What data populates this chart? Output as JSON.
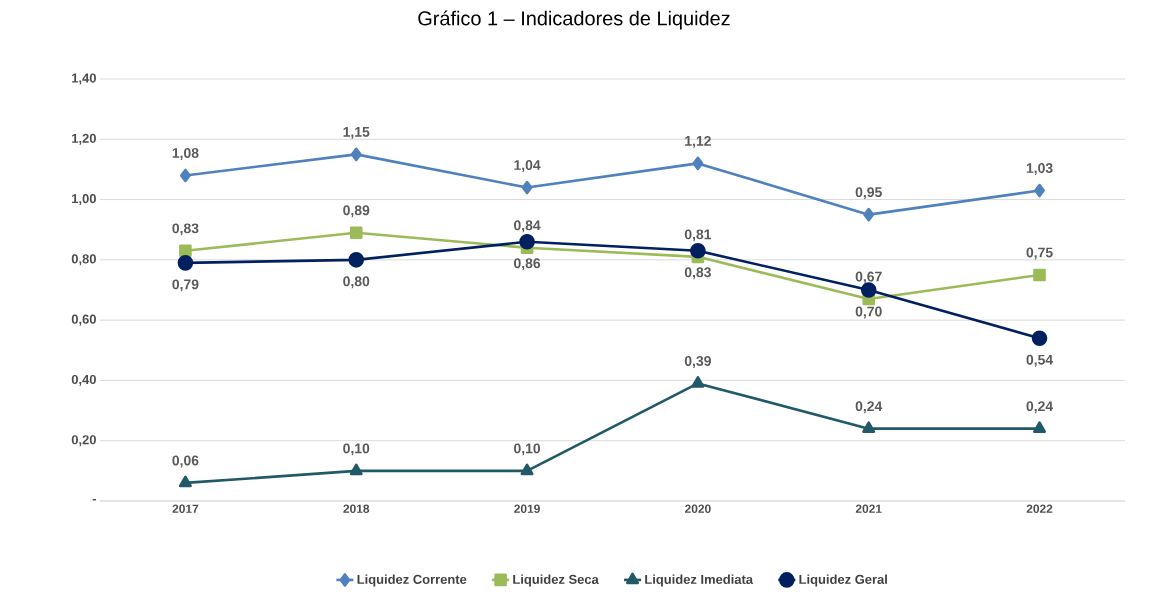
{
  "chart_data": {
    "type": "line",
    "title": "Gráfico 1 – Indicadores de Liquidez",
    "categories": [
      "2017",
      "2018",
      "2019",
      "2020",
      "2021",
      "2022"
    ],
    "ylim": [
      0,
      1.4
    ],
    "yticks": [
      {
        "value": 0,
        "label": "-"
      },
      {
        "value": 0.2,
        "label": "0,20"
      },
      {
        "value": 0.4,
        "label": "0,40"
      },
      {
        "value": 0.6,
        "label": "0,60"
      },
      {
        "value": 0.8,
        "label": "0,80"
      },
      {
        "value": 1.0,
        "label": "1,00"
      },
      {
        "value": 1.2,
        "label": "1,20"
      },
      {
        "value": 1.4,
        "label": "1,40"
      }
    ],
    "grid": "y",
    "legend": "bottom",
    "line_style": "solid",
    "series": [
      {
        "name": "Liquidez Corrente",
        "color": "#4f81bd",
        "marker": "diamond",
        "values": [
          1.08,
          1.15,
          1.04,
          1.12,
          0.95,
          1.03
        ],
        "value_labels": [
          "1,08",
          "1,15",
          "1,04",
          "1,12",
          "0,95",
          "1,03"
        ]
      },
      {
        "name": "Liquidez Seca",
        "color": "#9bbb59",
        "marker": "square",
        "values": [
          0.83,
          0.89,
          0.84,
          0.81,
          0.67,
          0.75
        ],
        "value_labels": [
          "0,83",
          "0,89",
          "0,84",
          "0,81",
          "0,67",
          "0,75"
        ]
      },
      {
        "name": "Liquidez Imediata",
        "color": "#215968",
        "marker": "triangle",
        "values": [
          0.06,
          0.1,
          0.1,
          0.39,
          0.24,
          0.24
        ],
        "value_labels": [
          "0,06",
          "0,10",
          "0,10",
          "0,39",
          "0,24",
          "0,24"
        ]
      },
      {
        "name": "Liquidez Geral",
        "color": "#002060",
        "marker": "circle",
        "values": [
          0.79,
          0.8,
          0.86,
          0.83,
          0.7,
          0.54
        ],
        "value_labels": [
          "0,79",
          "0,80",
          "0,86",
          "0,83",
          "0,70",
          "0,54"
        ]
      }
    ]
  }
}
